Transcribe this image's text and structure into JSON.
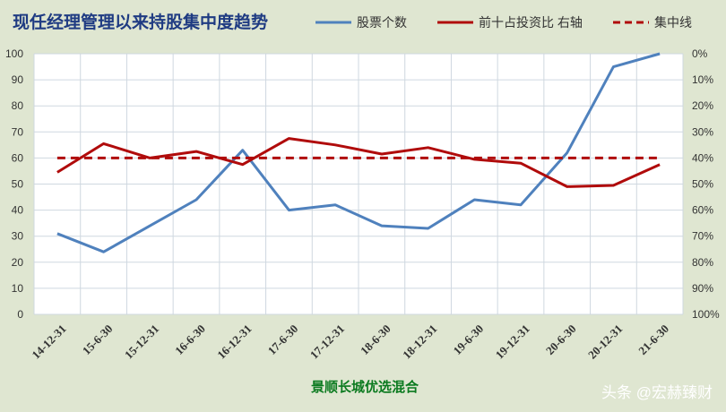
{
  "chart_data": {
    "type": "line",
    "title": "现任经理管理以来持股集中度趋势",
    "subtitle": "景顺长城优选混合",
    "categories": [
      "14-12-31",
      "15-6-30",
      "15-12-31",
      "16-6-30",
      "16-12-31",
      "17-6-30",
      "17-12-31",
      "18-6-30",
      "18-12-31",
      "19-6-30",
      "19-12-31",
      "20-6-30",
      "20-12-31",
      "21-6-30"
    ],
    "y_left": {
      "ticks": [
        "0",
        "10",
        "20",
        "30",
        "40",
        "50",
        "60",
        "70",
        "80",
        "90",
        "100"
      ],
      "ylim": [
        0,
        100
      ]
    },
    "y_right": {
      "ticks": [
        "0%",
        "10%",
        "20%",
        "30%",
        "40%",
        "50%",
        "60%",
        "70%",
        "80%",
        "90%",
        "100%"
      ],
      "ylim": [
        0,
        100
      ],
      "inverted": true
    },
    "grid": true,
    "legend_position": "top-right",
    "series": [
      {
        "name": "股票个数",
        "axis": "left",
        "color": "#4f81bd",
        "style": "solid",
        "values": [
          31,
          24,
          34,
          44,
          63,
          40,
          42,
          34,
          33,
          44,
          42,
          62,
          95,
          100
        ]
      },
      {
        "name": "前十占投资比 右轴",
        "axis": "right",
        "color": "#b00b0b",
        "style": "solid",
        "values": [
          45.5,
          34.5,
          40,
          37.5,
          42.5,
          32.5,
          35,
          38.5,
          36,
          40.5,
          42,
          51,
          50.5,
          42.5
        ]
      },
      {
        "name": "集中线",
        "axis": "right",
        "color": "#b00b0b",
        "style": "dashed",
        "values": [
          40,
          40,
          40,
          40,
          40,
          40,
          40,
          40,
          40,
          40,
          40,
          40,
          40,
          40
        ]
      }
    ]
  },
  "watermark": "头条 @宏赫臻财"
}
